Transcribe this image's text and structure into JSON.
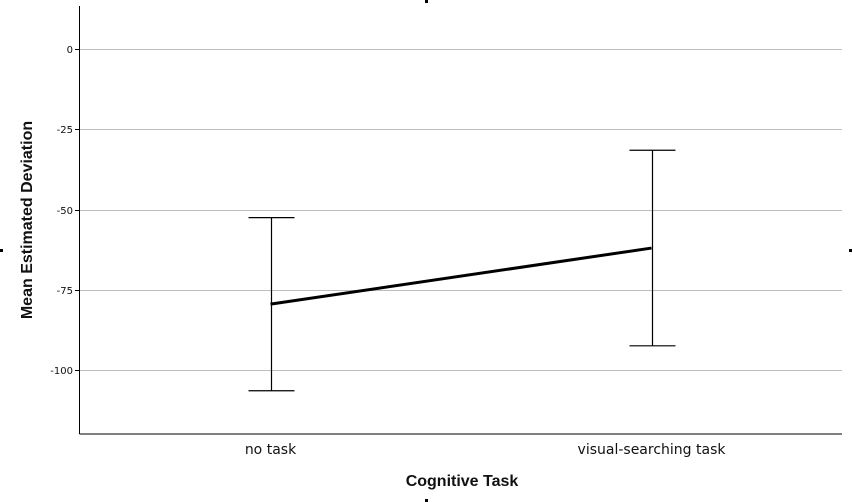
{
  "chart_data": {
    "type": "line",
    "title": "",
    "xlabel": "Cognitive Task",
    "ylabel": "Mean Estimated Deviation",
    "categories": [
      "no task",
      "visual-searching task"
    ],
    "series": [
      {
        "values": [
          -79.5,
          -62
        ],
        "error_low": [
          -106.5,
          -92.5
        ],
        "error_high": [
          -52.5,
          -31.5
        ]
      }
    ],
    "yticks": [
      0,
      -25,
      -50,
      -75,
      -100
    ],
    "ytick_labels": [
      "0",
      "-25",
      "-50",
      "-75",
      "-100"
    ],
    "ylim": [
      -120,
      13.5
    ],
    "grid": true,
    "legend": "none",
    "colors": {
      "line": "#000000",
      "grid": "#bdbdbd",
      "axis": "#000000"
    }
  }
}
